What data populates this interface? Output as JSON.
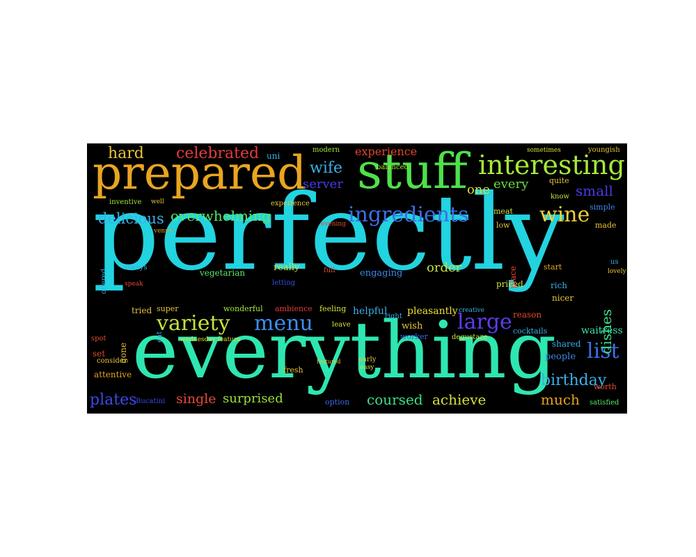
{
  "background": "#000000",
  "words": [
    {
      "text": "perfectly",
      "color": "#22d3e0"
    },
    {
      "text": "everything",
      "color": "#2ee6b0"
    },
    {
      "text": "prepared",
      "color": "#e8a521"
    },
    {
      "text": "stuff",
      "color": "#4ee04a"
    },
    {
      "text": "interesting",
      "color": "#a6e83a"
    },
    {
      "text": "ingredients",
      "color": "#3b6fe8"
    },
    {
      "text": "menu",
      "color": "#3b8ff0"
    },
    {
      "text": "variety",
      "color": "#c6e03a"
    },
    {
      "text": "wine",
      "color": "#f0d03a"
    },
    {
      "text": "large",
      "color": "#5a3ef0"
    },
    {
      "text": "list",
      "color": "#3b6fe8"
    },
    {
      "text": "celebrated",
      "color": "#e83a3a"
    },
    {
      "text": "hard",
      "color": "#e8c43a"
    },
    {
      "text": "delicious",
      "color": "#3ab0e8"
    },
    {
      "text": "overwhelming",
      "color": "#5ae86a"
    },
    {
      "text": "birthday",
      "color": "#3ab0e8"
    },
    {
      "text": "much",
      "color": "#e8a521"
    },
    {
      "text": "achieve",
      "color": "#d6e03a"
    },
    {
      "text": "coursed",
      "color": "#3ae08a"
    },
    {
      "text": "surprised",
      "color": "#9ae03a"
    },
    {
      "text": "single",
      "color": "#e84a3a"
    },
    {
      "text": "plates",
      "color": "#3a4ae8"
    },
    {
      "text": "wife",
      "color": "#3ab0e8"
    },
    {
      "text": "server",
      "color": "#4a3ae8"
    },
    {
      "text": "experience",
      "color": "#e8452a"
    },
    {
      "text": "small",
      "color": "#4a3ae8"
    },
    {
      "text": "one",
      "color": "#d6e03a"
    },
    {
      "text": "every",
      "color": "#6ae03a"
    },
    {
      "text": "order",
      "color": "#c6e03a"
    },
    {
      "text": "dishes",
      "color": "#3ae08a"
    },
    {
      "text": "pleasantly",
      "color": "#e8e03a"
    },
    {
      "text": "helpful",
      "color": "#3ab0e8"
    },
    {
      "text": "engaging",
      "color": "#3a8ae8"
    },
    {
      "text": "vegetarian",
      "color": "#5ae86a"
    },
    {
      "text": "really",
      "color": "#d6e03a"
    },
    {
      "text": "wonderful",
      "color": "#a6e83a"
    },
    {
      "text": "super",
      "color": "#e8c43a"
    },
    {
      "text": "tried",
      "color": "#e8c43a"
    },
    {
      "text": "feeling",
      "color": "#d6e03a"
    },
    {
      "text": "ambience",
      "color": "#e83a3a"
    },
    {
      "text": "waitress",
      "color": "#3ae0b0"
    },
    {
      "text": "people",
      "color": "#3a8ae8"
    },
    {
      "text": "shared",
      "color": "#3ab0e8"
    },
    {
      "text": "attentive",
      "color": "#e8a521"
    },
    {
      "text": "fresh",
      "color": "#e8c43a"
    },
    {
      "text": "option",
      "color": "#3a6ae8"
    },
    {
      "text": "Bucatini",
      "color": "#3a4ae8"
    },
    {
      "text": "consider",
      "color": "#e8c43a"
    },
    {
      "text": "reason",
      "color": "#e84a2a"
    },
    {
      "text": "priced",
      "color": "#d6e03a"
    },
    {
      "text": "rich",
      "color": "#3ab0e8"
    },
    {
      "text": "nicer",
      "color": "#e8c43a"
    },
    {
      "text": "start",
      "color": "#e8a521"
    },
    {
      "text": "place",
      "color": "#e84a2a"
    },
    {
      "text": "simple",
      "color": "#3a8ae8"
    },
    {
      "text": "made",
      "color": "#e8c43a"
    },
    {
      "text": "know",
      "color": "#c6e03a"
    },
    {
      "text": "quite",
      "color": "#e8c43a"
    },
    {
      "text": "low",
      "color": "#e8c43a"
    },
    {
      "text": "meat",
      "color": "#d6e03a"
    },
    {
      "text": "always",
      "color": "#3ab0e8"
    },
    {
      "text": "offered",
      "color": "#3ab0e8"
    },
    {
      "text": "inventive",
      "color": "#a6e83a"
    },
    {
      "text": "well",
      "color": "#e8c43a"
    },
    {
      "text": "balanced",
      "color": "#a6e83a"
    },
    {
      "text": "uni",
      "color": "#3ab0e8"
    },
    {
      "text": "modern",
      "color": "#a6e83a"
    },
    {
      "text": "sometimes",
      "color": "#d6e03a"
    },
    {
      "text": "youngish",
      "color": "#e8c43a"
    },
    {
      "text": "cocktails",
      "color": "#3ab0e8"
    },
    {
      "text": "worth",
      "color": "#e84a2a"
    },
    {
      "text": "satisfied",
      "color": "#5ae86a"
    },
    {
      "text": "full",
      "color": "#e84a2a"
    },
    {
      "text": "letting",
      "color": "#3a4ae8"
    },
    {
      "text": "wish",
      "color": "#e8c43a"
    },
    {
      "text": "leave",
      "color": "#d6e03a"
    },
    {
      "text": "set",
      "color": "#e84a2a"
    },
    {
      "text": "gone",
      "color": "#e8c43a"
    },
    {
      "text": "eat",
      "color": "#3ab0e8"
    },
    {
      "text": "spot",
      "color": "#e84a2a"
    },
    {
      "text": "right",
      "color": "#3ab0e8"
    },
    {
      "text": "evening",
      "color": "#e84a2a"
    },
    {
      "text": "early",
      "color": "#e8c43a"
    },
    {
      "text": "easy",
      "color": "#d6e03a"
    },
    {
      "text": "us",
      "color": "#3ab0e8"
    },
    {
      "text": "lovely",
      "color": "#e8c43a"
    },
    {
      "text": "speak",
      "color": "#e84a2a"
    },
    {
      "text": "venue",
      "color": "#e8a521"
    },
    {
      "text": "experience",
      "color": "#e8c43a"
    },
    {
      "text": "wednesday feature",
      "color": "#d6e03a"
    },
    {
      "text": "worker",
      "color": "#3a6ae8"
    },
    {
      "text": "degustaze",
      "color": "#d6e03a"
    },
    {
      "text": "creative",
      "color": "#3ab0e8"
    },
    {
      "text": "featured",
      "color": "#e8c43a"
    }
  ]
}
